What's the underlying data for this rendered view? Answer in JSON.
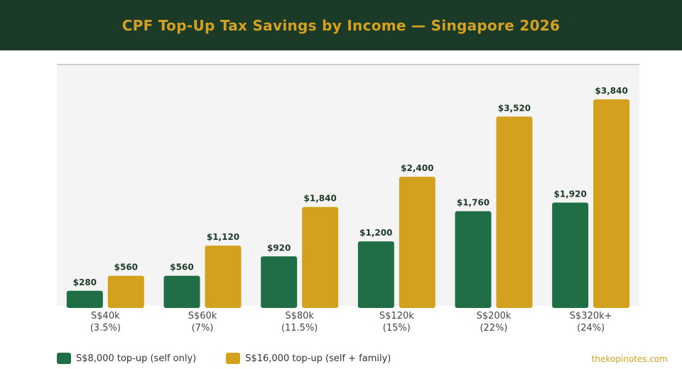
{
  "header": {
    "title": "CPF Top-Up Tax Savings by Income — Singapore 2026"
  },
  "colors": {
    "header_bg": "#1c3a28",
    "accent_gold": "#d4a11e",
    "series_green": "#1f6e45",
    "series_gold": "#d4a11e",
    "plot_bg": "#f4f4f4"
  },
  "chart_data": {
    "type": "bar",
    "title": "CPF Top-Up Tax Savings by Income — Singapore 2026",
    "categories": [
      "S$40k",
      "S$60k",
      "S$80k",
      "S$120k",
      "S$200k",
      "S$320k+"
    ],
    "category_sublabels": [
      "(3.5%)",
      "(7%)",
      "(11.5%)",
      "(15%)",
      "(22%)",
      "(24%)"
    ],
    "series": [
      {
        "name": "S$8,000 top-up (self only)",
        "color": "#1f6e45",
        "values": [
          280,
          560,
          920,
          1200,
          1760,
          1920
        ],
        "labels": [
          "$280",
          "$560",
          "$920",
          "$1,200",
          "$1,760",
          "$1,920"
        ]
      },
      {
        "name": "S$16,000 top-up (self + family)",
        "color": "#d4a11e",
        "values": [
          560,
          1120,
          1840,
          2400,
          3520,
          3840
        ],
        "labels": [
          "$560",
          "$1,120",
          "$1,840",
          "$2,400",
          "$3,520",
          "$3,840"
        ]
      }
    ],
    "ylim": [
      0,
      4500
    ],
    "grid": false,
    "legend_position": "bottom-left"
  },
  "footer": {
    "source": "thekopinotes.com"
  }
}
